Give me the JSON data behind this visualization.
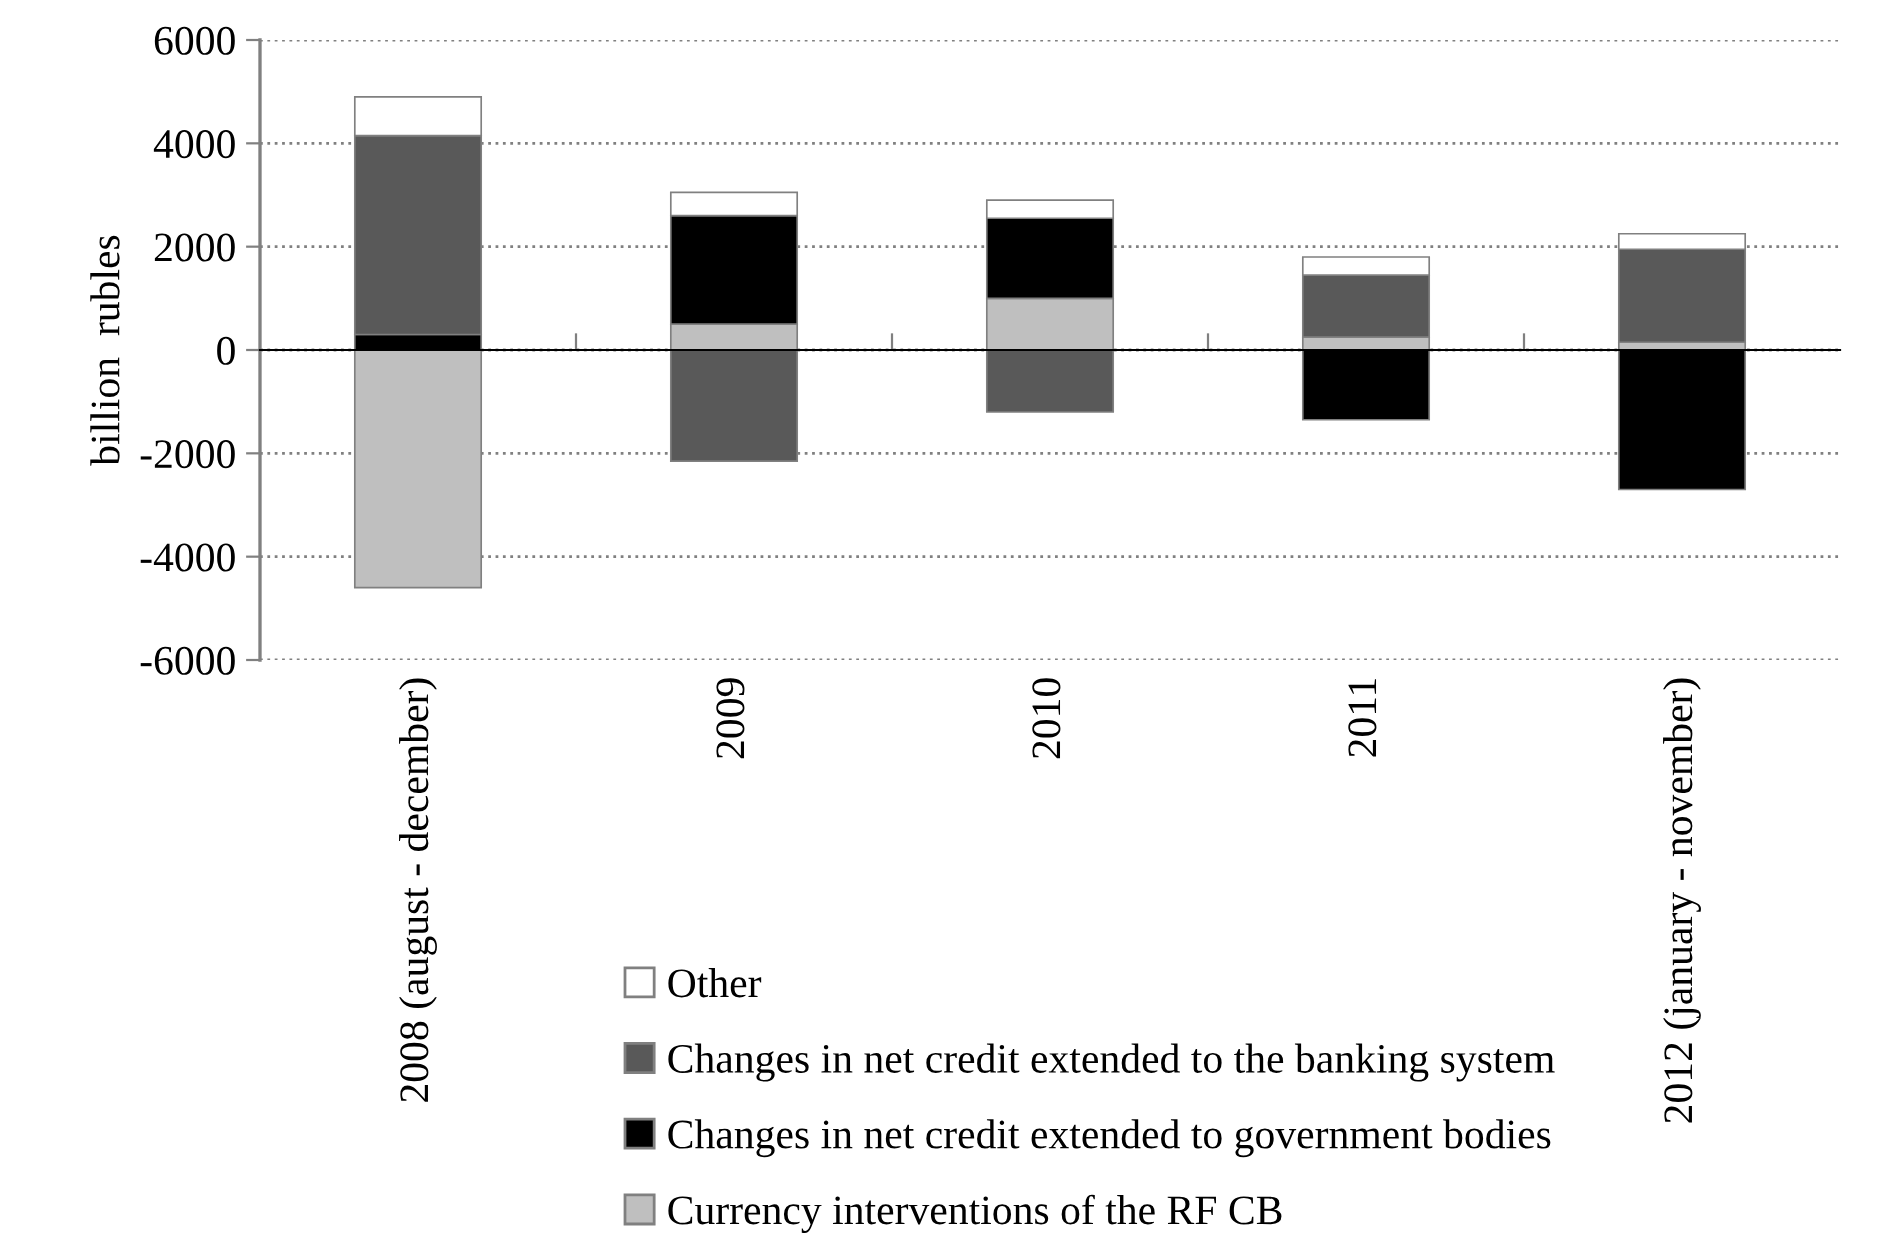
{
  "chart_data": {
    "type": "bar",
    "stacked": true,
    "ylabel": "billion  rubles",
    "categories": [
      "2008 (august - december)",
      "2009",
      "2010",
      "2011",
      "2012 (january - november)"
    ],
    "series": [
      {
        "name": "Currency interventions of the RF CB",
        "color": "#bfbfbf",
        "values": [
          -4600,
          500,
          1000,
          250,
          150
        ]
      },
      {
        "name": "Changes in net credit extended to government bodies",
        "color": "#000000",
        "values": [
          300,
          2100,
          1550,
          -1350,
          -2700
        ]
      },
      {
        "name": "Changes in net credit extended to the banking system",
        "color": "#595959",
        "values": [
          3850,
          -2150,
          -1200,
          1200,
          1800
        ]
      },
      {
        "name": "Other",
        "color": "#ffffff",
        "values": [
          750,
          450,
          350,
          350,
          300
        ]
      }
    ],
    "ylim": [
      -6000,
      6000
    ],
    "yticks": [
      -6000,
      -4000,
      -2000,
      0,
      2000,
      4000,
      6000
    ],
    "grid": "y",
    "legend": "bottom"
  }
}
